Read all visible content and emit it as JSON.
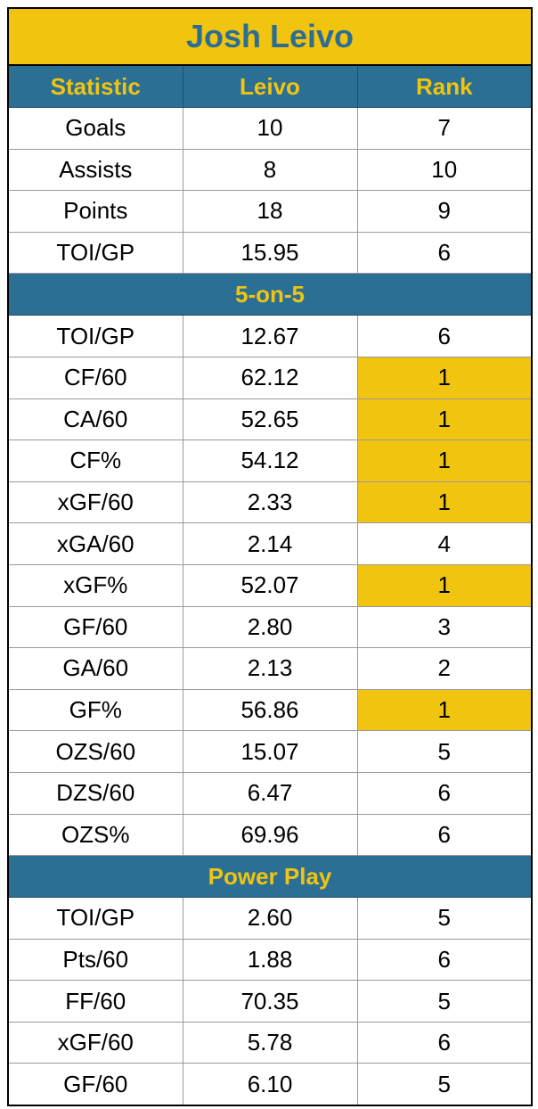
{
  "title": "Josh Leivo",
  "columns": [
    "Statistic",
    "Leivo",
    "Rank"
  ],
  "colors": {
    "header_bg": "#2b6f95",
    "accent": "#f1c40f",
    "title_text": "#2c6e93"
  },
  "sections": [
    {
      "label": "",
      "rows": [
        {
          "stat": "Goals",
          "value": "10",
          "rank": "7",
          "highlight": false
        },
        {
          "stat": "Assists",
          "value": "8",
          "rank": "10",
          "highlight": false
        },
        {
          "stat": "Points",
          "value": "18",
          "rank": "9",
          "highlight": false
        },
        {
          "stat": "TOI/GP",
          "value": "15.95",
          "rank": "6",
          "highlight": false
        }
      ]
    },
    {
      "label": "5-on-5",
      "rows": [
        {
          "stat": "TOI/GP",
          "value": "12.67",
          "rank": "6",
          "highlight": false
        },
        {
          "stat": "CF/60",
          "value": "62.12",
          "rank": "1",
          "highlight": true
        },
        {
          "stat": "CA/60",
          "value": "52.65",
          "rank": "1",
          "highlight": true
        },
        {
          "stat": "CF%",
          "value": "54.12",
          "rank": "1",
          "highlight": true
        },
        {
          "stat": "xGF/60",
          "value": "2.33",
          "rank": "1",
          "highlight": true
        },
        {
          "stat": "xGA/60",
          "value": "2.14",
          "rank": "4",
          "highlight": false
        },
        {
          "stat": "xGF%",
          "value": "52.07",
          "rank": "1",
          "highlight": true
        },
        {
          "stat": "GF/60",
          "value": "2.80",
          "rank": "3",
          "highlight": false
        },
        {
          "stat": "GA/60",
          "value": "2.13",
          "rank": "2",
          "highlight": false
        },
        {
          "stat": "GF%",
          "value": "56.86",
          "rank": "1",
          "highlight": true
        },
        {
          "stat": "OZS/60",
          "value": "15.07",
          "rank": "5",
          "highlight": false
        },
        {
          "stat": "DZS/60",
          "value": "6.47",
          "rank": "6",
          "highlight": false
        },
        {
          "stat": "OZS%",
          "value": "69.96",
          "rank": "6",
          "highlight": false
        }
      ]
    },
    {
      "label": "Power Play",
      "rows": [
        {
          "stat": "TOI/GP",
          "value": "2.60",
          "rank": "5",
          "highlight": false
        },
        {
          "stat": "Pts/60",
          "value": "1.88",
          "rank": "6",
          "highlight": false
        },
        {
          "stat": "FF/60",
          "value": "70.35",
          "rank": "5",
          "highlight": false
        },
        {
          "stat": "xGF/60",
          "value": "5.78",
          "rank": "6",
          "highlight": false
        },
        {
          "stat": "GF/60",
          "value": "6.10",
          "rank": "5",
          "highlight": false
        }
      ]
    }
  ]
}
